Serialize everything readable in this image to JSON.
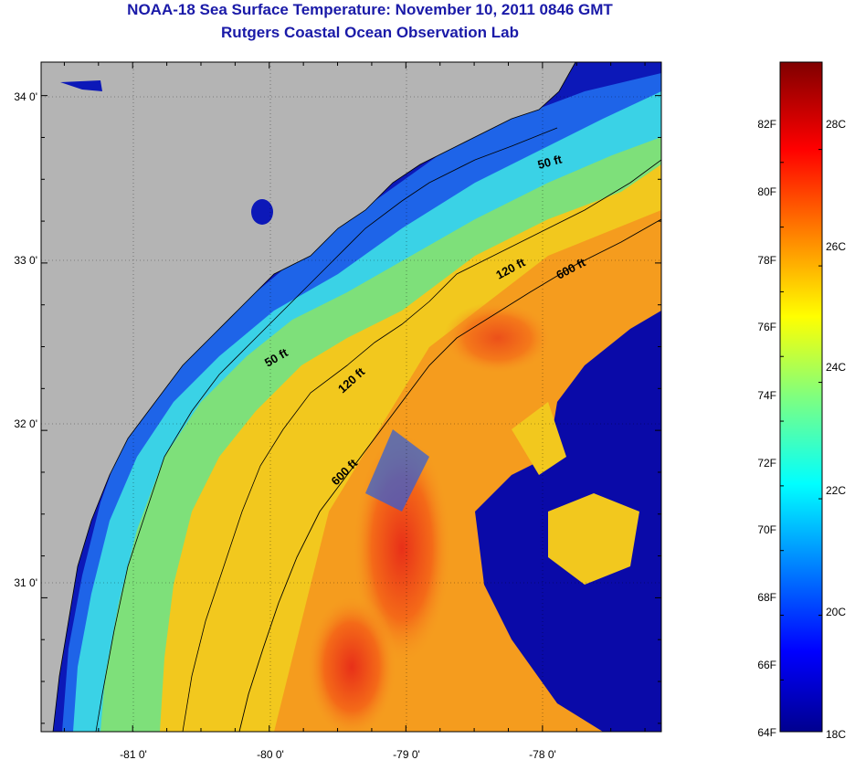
{
  "title_line1": "NOAA-18 Sea Surface Temperature:  November 10, 2011 0846 GMT",
  "title_line2": "Rutgers Coastal Ocean Observation Lab",
  "map": {
    "lon_ticks": [
      {
        "value": -81,
        "label": "-81 0'"
      },
      {
        "value": -80,
        "label": "-80 0'"
      },
      {
        "value": -79,
        "label": "-79 0'"
      },
      {
        "value": -78,
        "label": "-78 0'"
      }
    ],
    "lat_ticks": [
      {
        "value": 34,
        "label": "34 0'"
      },
      {
        "value": 33,
        "label": "33 0'"
      },
      {
        "value": 32,
        "label": "32 0'"
      },
      {
        "value": 31,
        "label": "31 0'"
      }
    ],
    "lon_range": [
      -81.67,
      -77.13
    ],
    "lat_range": [
      30.2,
      34.2
    ],
    "land_color": "#b4b4b4",
    "grid": "dotted",
    "isobaths": [
      {
        "label": "50 ft",
        "count": 2
      },
      {
        "label": "120 ft",
        "count": 2
      },
      {
        "label": "600 ft",
        "count": 2
      }
    ],
    "contour_labels": [
      "50 ft",
      "120 ft",
      "600 ft",
      "50 ft",
      "120 ft",
      "600 ft"
    ]
  },
  "colorbar": {
    "fahrenheit": [
      {
        "value": 82,
        "label": "82F"
      },
      {
        "value": 80,
        "label": "80F"
      },
      {
        "value": 78,
        "label": "78F"
      },
      {
        "value": 76,
        "label": "76F"
      },
      {
        "value": 74,
        "label": "74F"
      },
      {
        "value": 72,
        "label": "72F"
      },
      {
        "value": 70,
        "label": "70F"
      },
      {
        "value": 68,
        "label": "68F"
      },
      {
        "value": 66,
        "label": "66F"
      },
      {
        "value": 64,
        "label": "64F"
      }
    ],
    "celsius": [
      {
        "value": 28,
        "label": "28C"
      },
      {
        "value": 26,
        "label": "26C"
      },
      {
        "value": 24,
        "label": "24C"
      },
      {
        "value": 22,
        "label": "22C"
      },
      {
        "value": 20,
        "label": "20C"
      },
      {
        "value": 18,
        "label": "18C"
      }
    ],
    "colormap": "jet",
    "range_c": [
      18,
      29.5
    ]
  }
}
